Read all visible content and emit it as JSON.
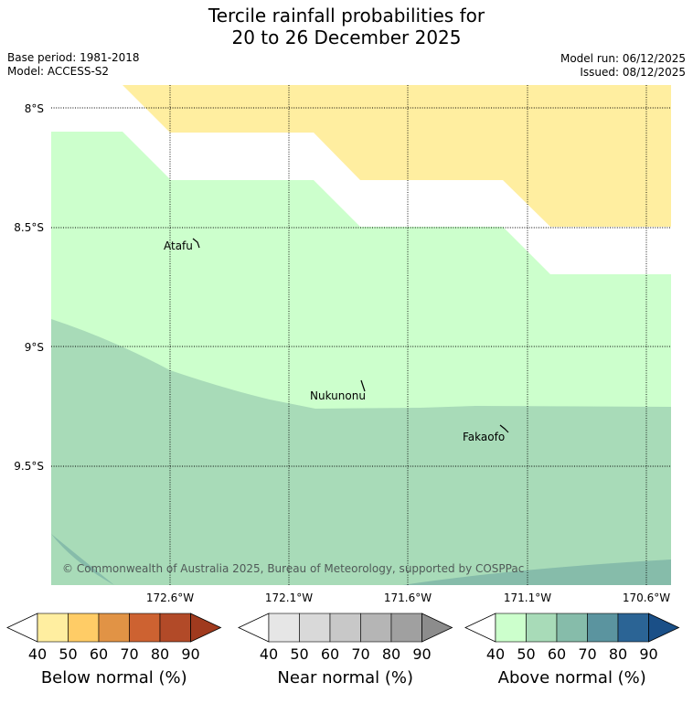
{
  "title": {
    "line1": "Tercile rainfall probabilities for",
    "line2": "20 to 26 December 2025"
  },
  "info": {
    "base_period": "Base period: 1981-2018",
    "model": "Model: ACCESS-S2",
    "model_run": "Model run: 06/12/2025",
    "issued": "Issued: 08/12/2025"
  },
  "map": {
    "lat_labels": [
      "8°S",
      "8.5°S",
      "9°S",
      "9.5°S"
    ],
    "lon_labels": [
      "172.6°W",
      "172.1°W",
      "171.6°W",
      "171.1°W",
      "170.6°W"
    ],
    "places": [
      "Atafu",
      "Nukunonu",
      "Fakaofo"
    ],
    "copyright": "© Commonwealth of Australia 2025, Bureau of Meteorology, supported by COSPPac"
  },
  "legends": [
    {
      "name": "below-normal",
      "title": "Below normal (%)",
      "ticks": [
        "40",
        "50",
        "60",
        "70",
        "80",
        "90"
      ],
      "colors": [
        "#ffeea0",
        "#ffcc66",
        "#e19345",
        "#cd6231",
        "#b24a28",
        "#a03a1e"
      ]
    },
    {
      "name": "near-normal",
      "title": "Near normal (%)",
      "ticks": [
        "40",
        "50",
        "60",
        "70",
        "80",
        "90"
      ],
      "colors": [
        "#e6e6e6",
        "#d9d9d9",
        "#c8c8c8",
        "#b5b5b5",
        "#a0a0a0",
        "#8c8c8c"
      ]
    },
    {
      "name": "above-normal",
      "title": "Above normal (%)",
      "ticks": [
        "40",
        "50",
        "60",
        "70",
        "80",
        "90"
      ],
      "colors": [
        "#ccffcc",
        "#a8dbb8",
        "#86bcaa",
        "#5b949f",
        "#2b6495",
        "#1a4f87"
      ]
    }
  ]
}
